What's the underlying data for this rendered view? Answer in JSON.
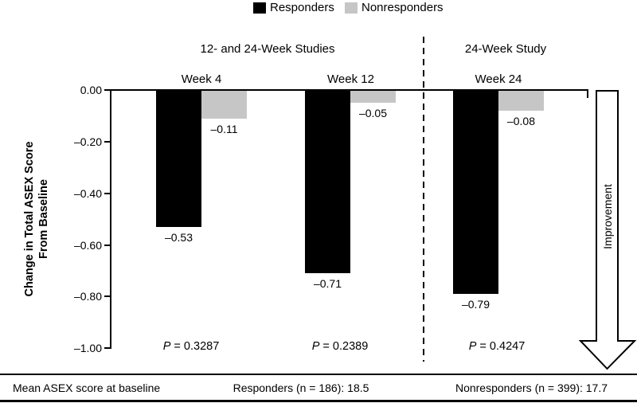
{
  "legend": {
    "items": [
      {
        "label": "Responders",
        "color": "#000000"
      },
      {
        "label": "Nonresponders",
        "color": "#c6c6c6"
      }
    ]
  },
  "headers": {
    "left": "12- and 24-Week Studies",
    "right": "24-Week Study"
  },
  "ylabel": {
    "line1": "Change in Total ASEX Score",
    "line2": "From Baseline"
  },
  "yticks": [
    "0.00",
    "–0.20",
    "–0.40",
    "–0.60",
    "–0.80",
    "–1.00"
  ],
  "groups": [
    {
      "week": "Week 4",
      "responder_label": "–0.53",
      "nonresponder_label": "–0.11",
      "p_symbol": "P",
      "p_text": " = 0.3287"
    },
    {
      "week": "Week 12",
      "responder_label": "–0.71",
      "nonresponder_label": "–0.05",
      "p_symbol": "P",
      "p_text": " = 0.2389"
    },
    {
      "week": "Week 24",
      "responder_label": "–0.79",
      "nonresponder_label": "–0.08",
      "p_symbol": "P",
      "p_text": " = 0.4247"
    }
  ],
  "improvement_label": "Improvement",
  "footer": {
    "left": "Mean ASEX score at baseline",
    "center": "Responders (n = 186): 18.5",
    "right": "Nonresponders (n = 399): 17.7"
  },
  "chart_data": {
    "type": "bar",
    "title": "",
    "xlabel": "",
    "ylabel": "Change in Total ASEX Score From Baseline",
    "ylim": [
      -1.0,
      0.0
    ],
    "ytick_values": [
      0.0,
      -0.2,
      -0.4,
      -0.6,
      -0.8,
      -1.0
    ],
    "categories": [
      "Week 4",
      "Week 12",
      "Week 24"
    ],
    "category_group_headers": [
      {
        "label": "12- and 24-Week Studies",
        "categories": [
          "Week 4",
          "Week 12"
        ]
      },
      {
        "label": "24-Week Study",
        "categories": [
          "Week 24"
        ]
      }
    ],
    "series": [
      {
        "name": "Responders",
        "color": "#000000",
        "values": [
          -0.53,
          -0.71,
          -0.79
        ]
      },
      {
        "name": "Nonresponders",
        "color": "#c6c6c6",
        "values": [
          -0.11,
          -0.05,
          -0.08
        ]
      }
    ],
    "p_values": [
      "P = 0.3287",
      "P = 0.2389",
      "P = 0.4247"
    ],
    "annotations": [
      "Improvement (downward arrow at right of plot)"
    ],
    "legend_position": "top",
    "grid": false,
    "footnote": "Mean ASEX score at baseline — Responders (n = 186): 18.5; Nonresponders (n = 399): 17.7"
  }
}
